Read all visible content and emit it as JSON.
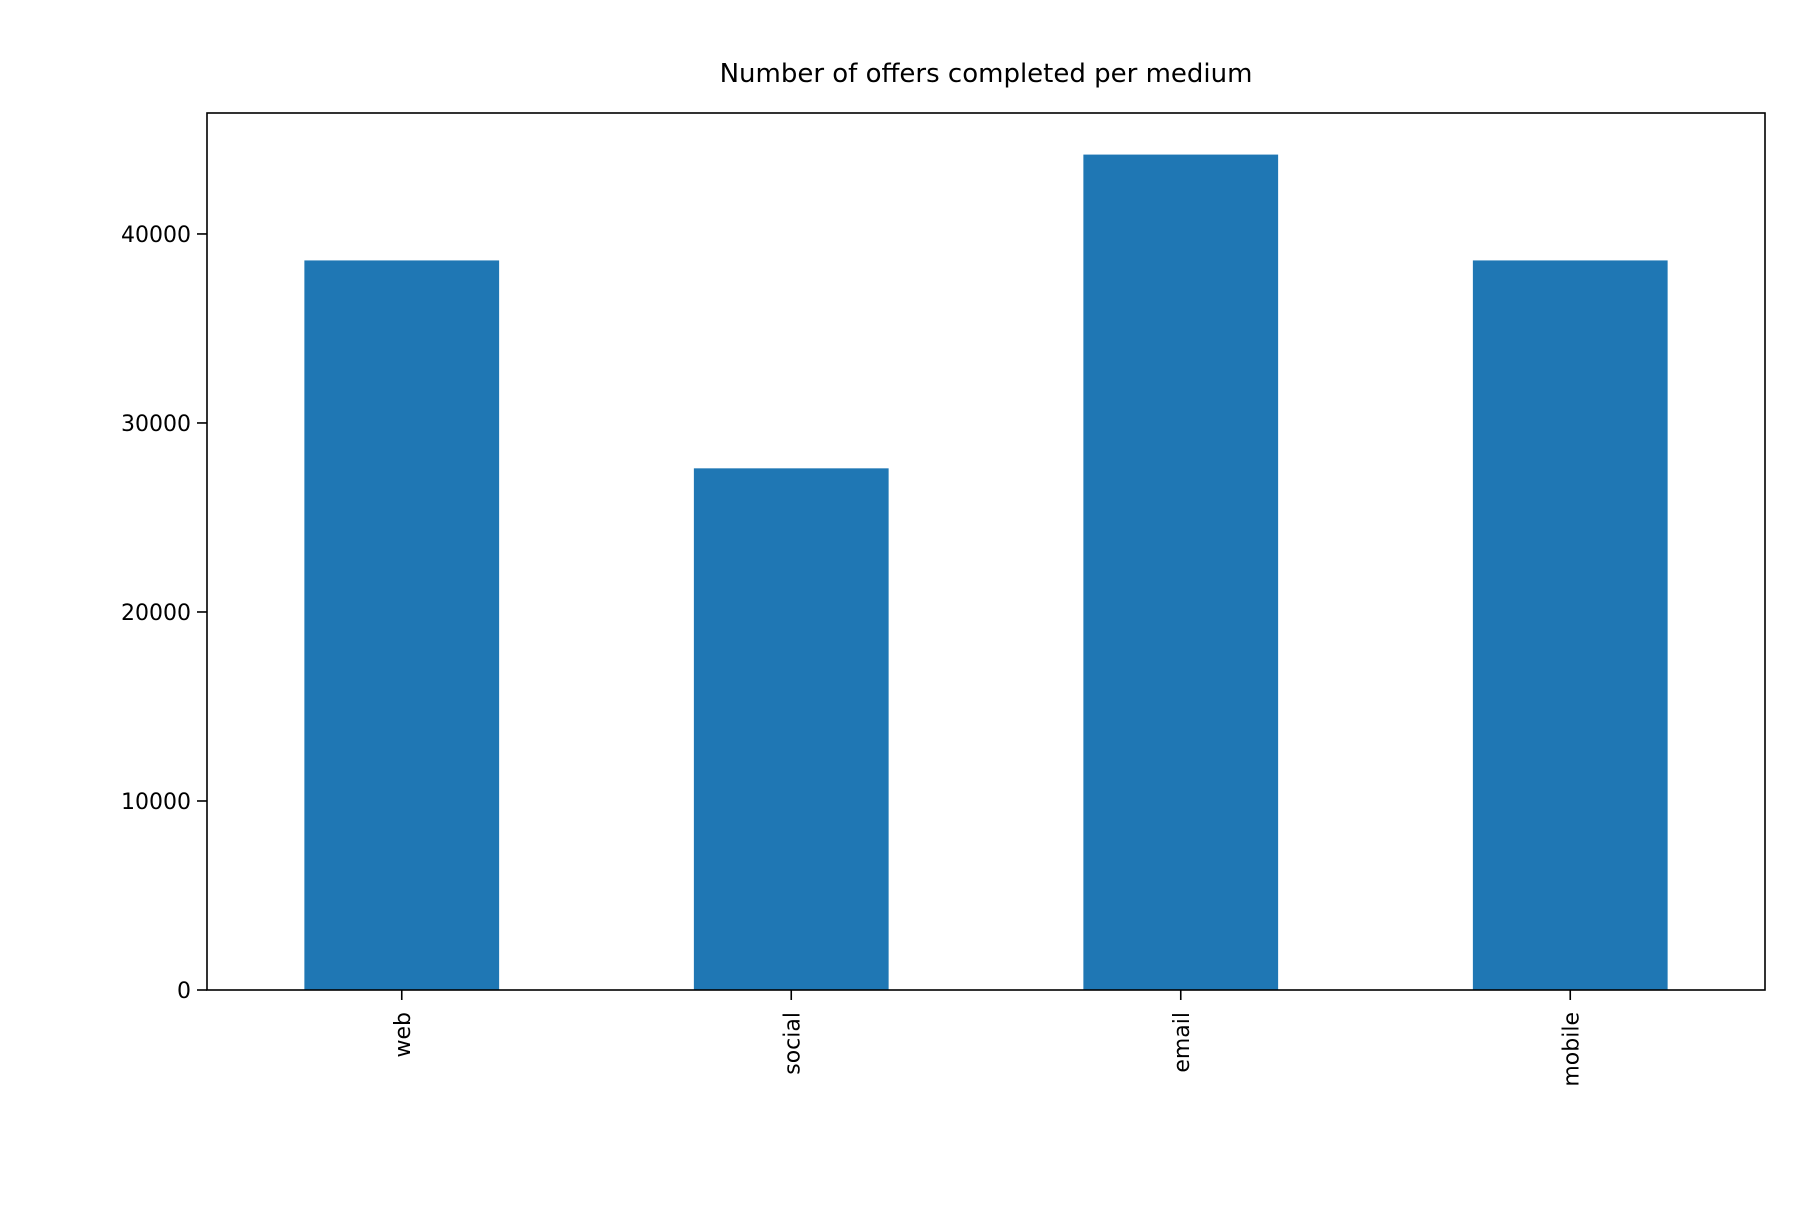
{
  "colors": {
    "bar": "#1f77b4",
    "axis": "#000000",
    "background": "#ffffff"
  },
  "chart_data": {
    "type": "bar",
    "title": "Number of offers completed per medium",
    "xlabel": "",
    "ylabel": "",
    "categories": [
      "web",
      "social",
      "email",
      "mobile"
    ],
    "values": [
      38600,
      27600,
      44200,
      38600
    ],
    "ylim": [
      0,
      46400
    ],
    "yticks": [
      0,
      10000,
      20000,
      30000,
      40000
    ],
    "ytick_labels": [
      "0",
      "10000",
      "20000",
      "30000",
      "40000"
    ],
    "xtick_rotation": "vertical",
    "grid": false,
    "legend": "none"
  }
}
